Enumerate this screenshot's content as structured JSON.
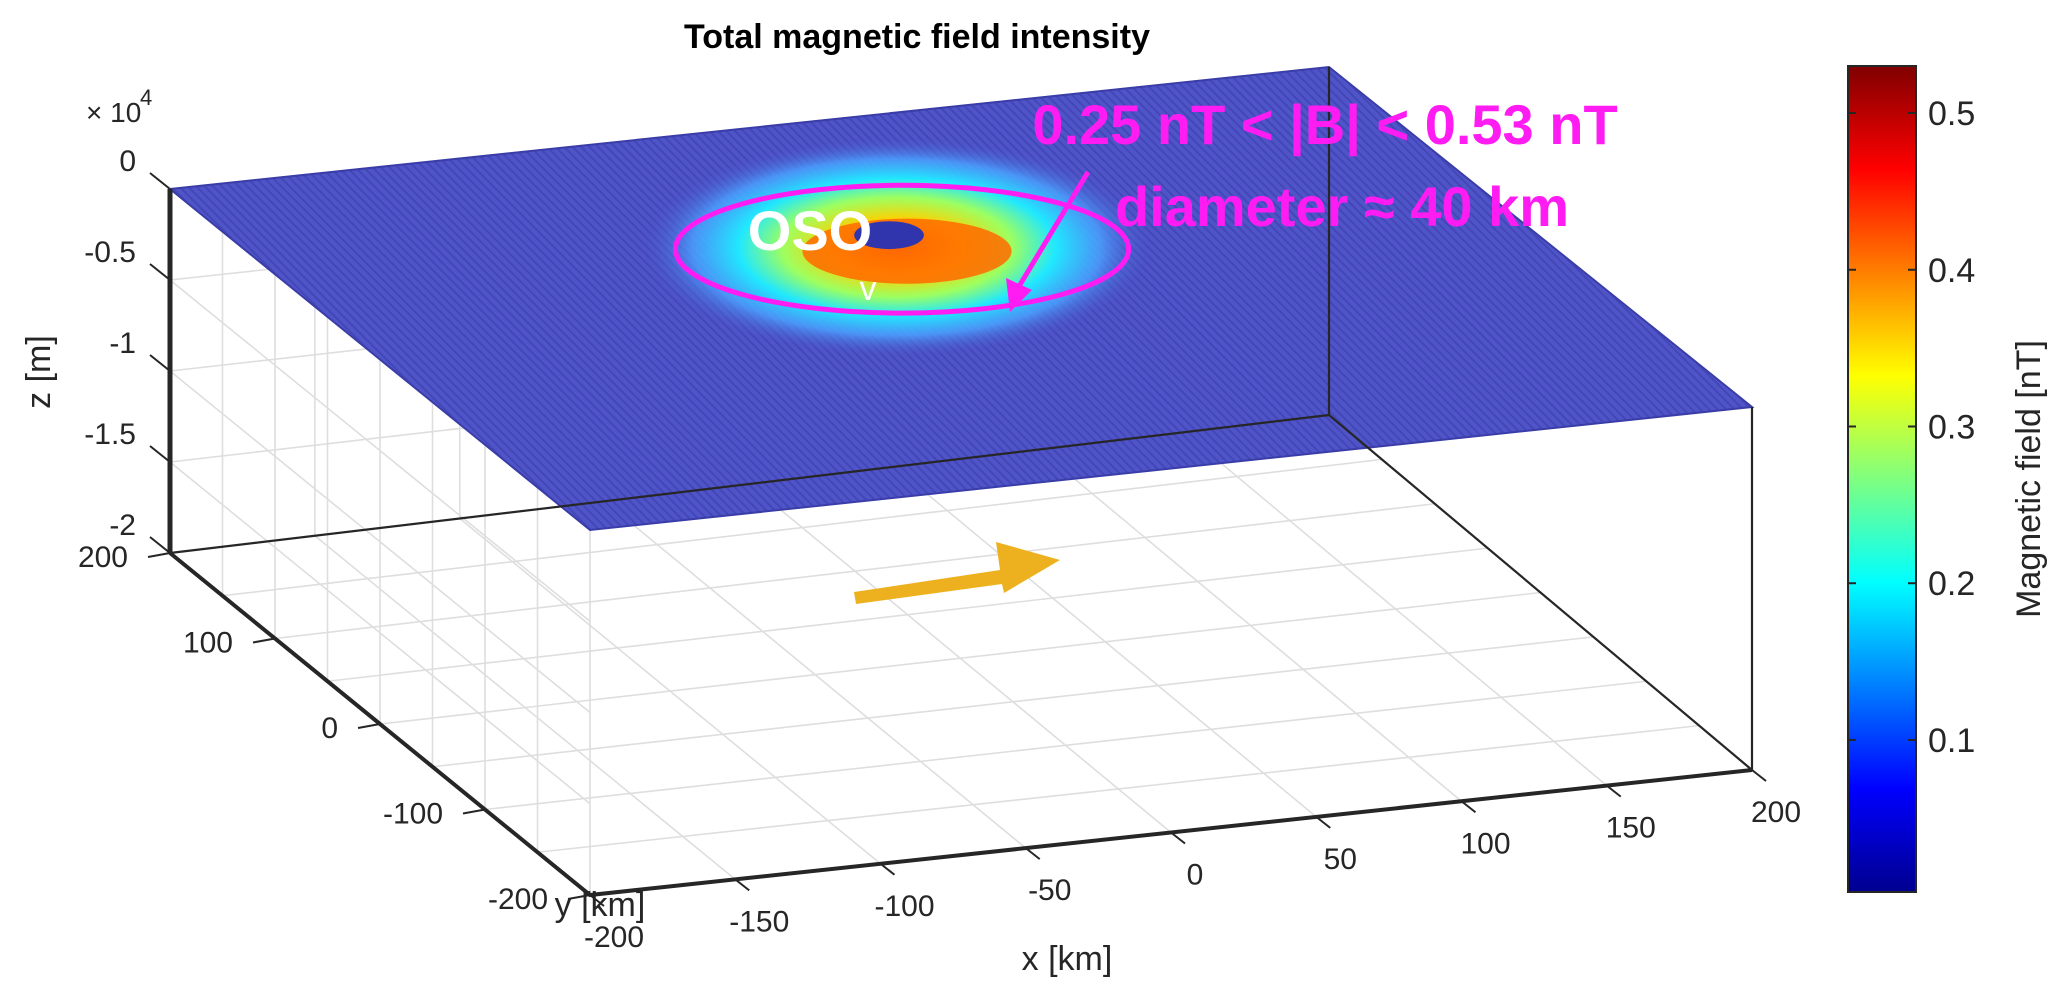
{
  "chart_data": {
    "type": "surface",
    "title": "Total magnetic field intensity",
    "xlabel": "x [km]",
    "ylabel": "y [km]",
    "zlabel": "z [m]",
    "z_multiplier_text": "× 10",
    "z_multiplier_exp": "4",
    "xlim": [
      -200,
      200
    ],
    "ylim": [
      -200,
      200
    ],
    "zlim": [
      -2,
      0
    ],
    "x_ticks": [
      "-200",
      "-150",
      "-100",
      "-50",
      "0",
      "50",
      "100",
      "150",
      "200"
    ],
    "y_ticks": [
      "-200",
      "-100",
      "0",
      "100",
      "200"
    ],
    "z_ticks": [
      "0",
      "-0.5",
      "-1",
      "-1.5",
      "-2"
    ],
    "surface_z": 0,
    "surface_color": "#4a4ec3",
    "anomaly": {
      "label": "OSO",
      "marker": "v",
      "center_x_km": 0,
      "center_y_km": 60,
      "diameter_km": 40
    },
    "colorbar": {
      "label": "Magnetic field [nT]",
      "ticks": [
        "0.1",
        "0.2",
        "0.3",
        "0.4",
        "0.5"
      ],
      "tick_values": [
        0.1,
        0.2,
        0.3,
        0.4,
        0.5
      ],
      "range": [
        0.003,
        0.53
      ]
    },
    "annotations": {
      "range_text": "0.25 nT < |B| < 0.53 nT",
      "diameter_text": "diameter ≈  40 km",
      "annotation_color": "#ff1cf2",
      "direction_arrow_color": "#edb120"
    }
  }
}
